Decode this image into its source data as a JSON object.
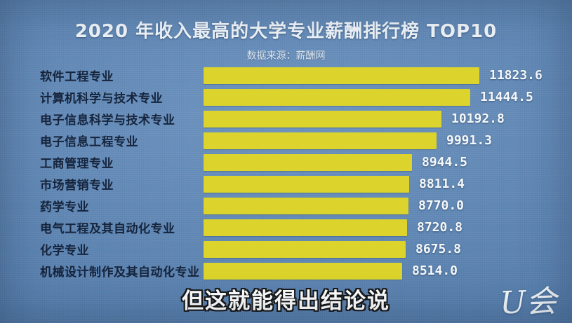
{
  "chart_data": {
    "type": "bar",
    "orientation": "horizontal",
    "title": "2020 年收入最高的大学专业薪酬排行榜 TOP10",
    "subtitle": "数据来源：薪酬网",
    "categories": [
      "软件工程专业",
      "计算机科学与技术专业",
      "电子信息科学与技术专业",
      "电子信息工程专业",
      "工商管理专业",
      "市场营销专业",
      "药学专业",
      "电气工程及其自动化专业",
      "化学专业",
      "机械设计制作及其自动化专业"
    ],
    "values": [
      11823.6,
      11444.5,
      10192.8,
      9991.3,
      8944.5,
      8811.4,
      8770.0,
      8720.8,
      8675.8,
      8514.0
    ],
    "value_labels": [
      "11823.6",
      "11444.5",
      "10192.8",
      "9991.3",
      "8944.5",
      "8811.4",
      "8770.0",
      "8720.8",
      "8675.8",
      "8514.0"
    ],
    "xlim": [
      0,
      12000
    ],
    "grid": false,
    "legend": "none",
    "colors": {
      "background": "#5d88b9",
      "bar": "#dcd42c",
      "category_text": "#16243c",
      "value_text": "#f5f8fa",
      "title_text": "#f0f5f9"
    }
  },
  "caption": {
    "text": "但这就能得出结论说"
  },
  "watermark": {
    "text": "U会"
  }
}
